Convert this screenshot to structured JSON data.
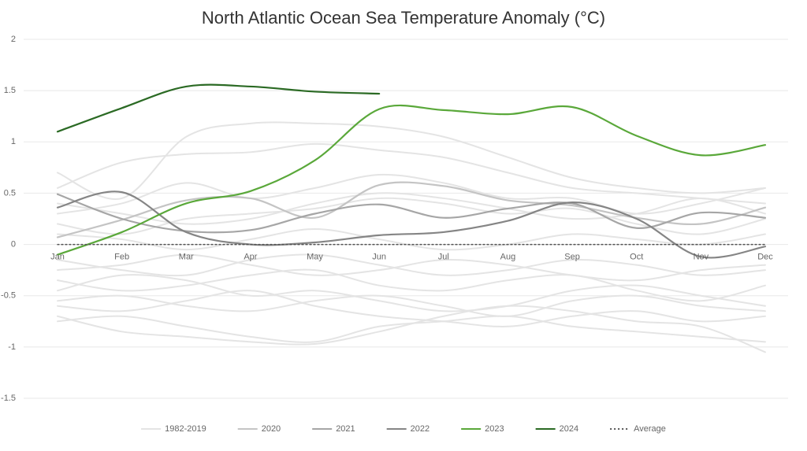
{
  "chart_data": {
    "type": "line",
    "title": "North Atlantic Ocean Sea Temperature Anomaly (°C)",
    "categories": [
      "Jan",
      "Feb",
      "Mar",
      "Apr",
      "May",
      "Jun",
      "Jul",
      "Aug",
      "Sep",
      "Oct",
      "Nov",
      "Dec"
    ],
    "ylim": [
      -1.5,
      2
    ],
    "yticks": [
      -1.5,
      -1,
      -0.5,
      0,
      0.5,
      1,
      1.5,
      2
    ],
    "grid": true,
    "legend": "bottom",
    "background": {
      "name": "1982-2019",
      "color": "#e4e4e4",
      "lines": [
        [
          0.7,
          0.45,
          1.05,
          1.18,
          1.18,
          1.15,
          1.05,
          0.85,
          0.65,
          0.55,
          0.5,
          0.55
        ],
        [
          0.55,
          0.8,
          0.88,
          0.9,
          0.98,
          0.92,
          0.85,
          0.7,
          0.55,
          0.5,
          0.45,
          0.4
        ],
        [
          0.3,
          0.4,
          0.6,
          0.45,
          0.55,
          0.68,
          0.6,
          0.45,
          0.45,
          0.3,
          0.4,
          0.55
        ],
        [
          0.2,
          0.1,
          0.25,
          0.3,
          0.35,
          0.45,
          0.4,
          0.3,
          0.35,
          0.2,
          0.1,
          0.25
        ],
        [
          -0.25,
          -0.2,
          -0.1,
          -0.2,
          -0.3,
          -0.25,
          -0.15,
          -0.2,
          -0.3,
          -0.35,
          -0.25,
          -0.2
        ],
        [
          -0.35,
          -0.45,
          -0.4,
          -0.3,
          -0.25,
          -0.4,
          -0.45,
          -0.35,
          -0.3,
          -0.45,
          -0.55,
          -0.4
        ],
        [
          -0.55,
          -0.5,
          -0.6,
          -0.65,
          -0.55,
          -0.5,
          -0.6,
          -0.7,
          -0.55,
          -0.5,
          -0.6,
          -0.65
        ],
        [
          -0.75,
          -0.7,
          -0.8,
          -0.9,
          -0.95,
          -0.8,
          -0.75,
          -0.7,
          -0.8,
          -0.85,
          -0.9,
          -0.95
        ],
        [
          -0.7,
          -0.85,
          -0.9,
          -0.95,
          -0.97,
          -0.85,
          -0.7,
          -0.6,
          -0.65,
          -0.75,
          -0.8,
          -1.05
        ],
        [
          -0.45,
          -0.3,
          -0.35,
          -0.5,
          -0.45,
          -0.55,
          -0.65,
          -0.6,
          -0.45,
          -0.4,
          -0.5,
          -0.6
        ],
        [
          -0.15,
          -0.25,
          -0.3,
          -0.15,
          -0.1,
          -0.2,
          -0.3,
          -0.25,
          -0.15,
          -0.2,
          -0.3,
          -0.25
        ],
        [
          0.1,
          0.05,
          -0.05,
          0.05,
          0.15,
          0.05,
          -0.05,
          0.0,
          0.1,
          0.05,
          0.0,
          0.1
        ],
        [
          -0.6,
          -0.65,
          -0.55,
          -0.45,
          -0.6,
          -0.7,
          -0.75,
          -0.8,
          -0.7,
          -0.65,
          -0.75,
          -0.7
        ],
        [
          0.4,
          0.3,
          0.2,
          0.25,
          0.4,
          0.5,
          0.45,
          0.35,
          0.25,
          0.3,
          0.45,
          0.3
        ]
      ]
    },
    "series": [
      {
        "name": "2020",
        "color": "#c4c4c4",
        "values": [
          0.07,
          0.24,
          0.43,
          0.45,
          0.26,
          0.58,
          0.57,
          0.43,
          0.38,
          0.26,
          0.2,
          0.36
        ]
      },
      {
        "name": "2021",
        "color": "#a6a6a6",
        "values": [
          0.49,
          0.25,
          0.13,
          0.14,
          0.3,
          0.39,
          0.26,
          0.35,
          0.4,
          0.16,
          0.31,
          0.26
        ]
      },
      {
        "name": "2022",
        "color": "#858585",
        "values": [
          0.36,
          0.51,
          0.12,
          0.0,
          0.02,
          0.09,
          0.12,
          0.23,
          0.41,
          0.25,
          -0.12,
          -0.02
        ]
      },
      {
        "name": "2023",
        "color": "#5aa83a",
        "values": [
          -0.1,
          0.12,
          0.4,
          0.52,
          0.82,
          1.32,
          1.31,
          1.27,
          1.34,
          1.06,
          0.87,
          0.97
        ]
      },
      {
        "name": "2024",
        "color": "#2b6a24",
        "values": [
          1.1,
          1.33,
          1.54,
          1.54,
          1.49,
          1.47,
          null,
          null,
          null,
          null,
          null,
          null
        ]
      },
      {
        "name": "Average",
        "color": "#555555",
        "dashed": true,
        "values": [
          0,
          0,
          0,
          0,
          0,
          0,
          0,
          0,
          0,
          0,
          0,
          0
        ]
      }
    ]
  }
}
